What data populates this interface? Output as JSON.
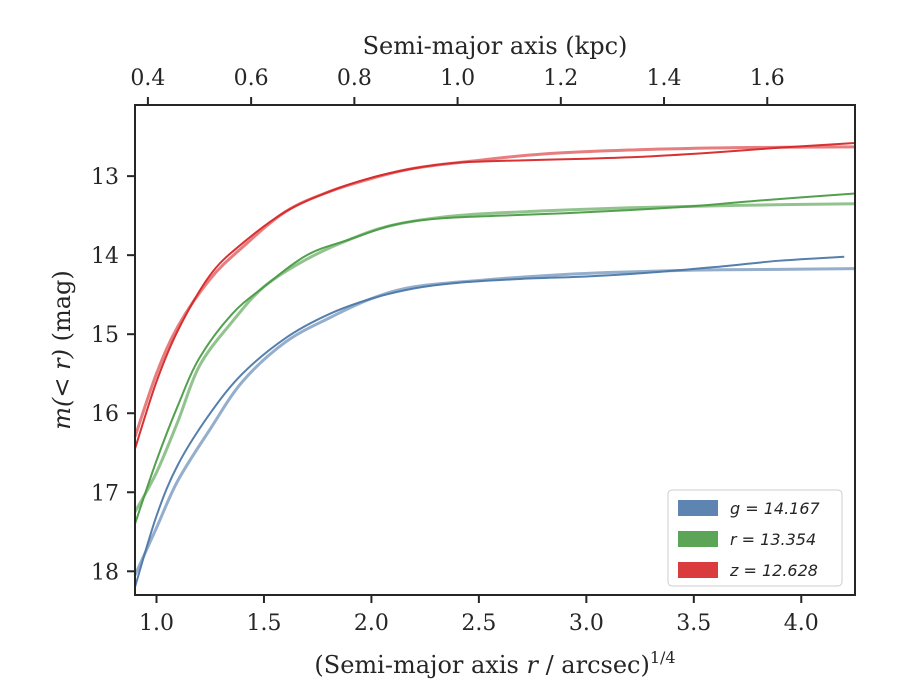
{
  "chart_data": {
    "type": "line",
    "xlabel": "(Semi-major axis r / arcsec)^1/4",
    "xlabel_parts": {
      "prefix": "(Semi-major axis ",
      "var": "r",
      "suffix": " / arcsec)",
      "exp": "1/4"
    },
    "ylabel": "m(< r) (mag)",
    "ylabel_parts": {
      "math": "m(< r)",
      "unit": " (mag)"
    },
    "top_xlabel": "Semi-major axis (kpc)",
    "xlim": [
      0.9,
      4.25
    ],
    "ylim": [
      18.3,
      12.1
    ],
    "y_inverted": true,
    "top_xlim": [
      0.375,
      1.77
    ],
    "x_ticks": [
      1.0,
      1.5,
      2.0,
      2.5,
      3.0,
      3.5,
      4.0
    ],
    "x_tick_labels": [
      "1.0",
      "1.5",
      "2.0",
      "2.5",
      "3.0",
      "3.5",
      "4.0"
    ],
    "top_x_ticks": [
      0.4,
      0.6,
      0.8,
      1.0,
      1.2,
      1.4,
      1.6
    ],
    "top_x_tick_labels": [
      "0.4",
      "0.6",
      "0.8",
      "1.0",
      "1.2",
      "1.4",
      "1.6"
    ],
    "y_ticks": [
      13,
      14,
      15,
      16,
      17,
      18
    ],
    "y_tick_labels": [
      "13",
      "14",
      "15",
      "16",
      "17",
      "18"
    ],
    "grid": false,
    "legend_position": "lower-right",
    "series": [
      {
        "name": "g = 14.167",
        "color": "#4c78a8",
        "data_x": [
          0.9,
          1.0,
          1.1,
          1.25,
          1.4,
          1.6,
          1.8,
          2.0,
          2.2,
          2.4,
          2.7,
          3.0,
          3.3,
          3.6,
          3.9,
          4.2
        ],
        "data_y": [
          18.2,
          17.3,
          16.65,
          16.0,
          15.5,
          15.05,
          14.75,
          14.55,
          14.42,
          14.35,
          14.3,
          14.27,
          14.22,
          14.15,
          14.07,
          14.02
        ],
        "model_x": [
          0.9,
          1.0,
          1.1,
          1.25,
          1.4,
          1.6,
          1.8,
          2.0,
          2.2,
          2.5,
          2.8,
          3.1,
          3.5,
          3.9,
          4.25
        ],
        "model_y": [
          18.05,
          17.45,
          16.85,
          16.2,
          15.6,
          15.1,
          14.8,
          14.55,
          14.4,
          14.32,
          14.26,
          14.22,
          14.19,
          14.18,
          14.17
        ]
      },
      {
        "name": "r = 13.354",
        "color": "#4a9b44",
        "data_x": [
          0.9,
          1.0,
          1.1,
          1.2,
          1.35,
          1.5,
          1.7,
          1.9,
          2.1,
          2.3,
          2.6,
          2.9,
          3.2,
          3.5,
          3.8,
          4.25
        ],
        "data_y": [
          17.4,
          16.6,
          15.9,
          15.3,
          14.75,
          14.4,
          14.0,
          13.8,
          13.62,
          13.54,
          13.5,
          13.47,
          13.43,
          13.38,
          13.31,
          13.22
        ],
        "model_x": [
          0.9,
          1.0,
          1.1,
          1.2,
          1.35,
          1.5,
          1.7,
          1.9,
          2.1,
          2.4,
          2.8,
          3.2,
          3.7,
          4.25
        ],
        "model_y": [
          17.25,
          16.75,
          16.1,
          15.4,
          14.85,
          14.4,
          14.05,
          13.8,
          13.62,
          13.5,
          13.44,
          13.4,
          13.37,
          13.35
        ]
      },
      {
        "name": "z = 12.628",
        "color": "#d62728",
        "data_x": [
          0.9,
          1.0,
          1.1,
          1.25,
          1.4,
          1.6,
          1.8,
          2.0,
          2.2,
          2.4,
          2.7,
          3.0,
          3.3,
          3.6,
          3.9,
          4.25
        ],
        "data_y": [
          16.45,
          15.6,
          14.95,
          14.25,
          13.85,
          13.45,
          13.2,
          13.02,
          12.9,
          12.83,
          12.8,
          12.78,
          12.75,
          12.7,
          12.64,
          12.58
        ],
        "model_x": [
          0.9,
          1.0,
          1.1,
          1.25,
          1.4,
          1.6,
          1.8,
          2.0,
          2.2,
          2.5,
          2.8,
          3.2,
          3.7,
          4.25
        ],
        "model_y": [
          16.3,
          15.5,
          14.9,
          14.3,
          13.9,
          13.45,
          13.2,
          13.03,
          12.9,
          12.8,
          12.72,
          12.67,
          12.64,
          12.63
        ]
      }
    ]
  }
}
